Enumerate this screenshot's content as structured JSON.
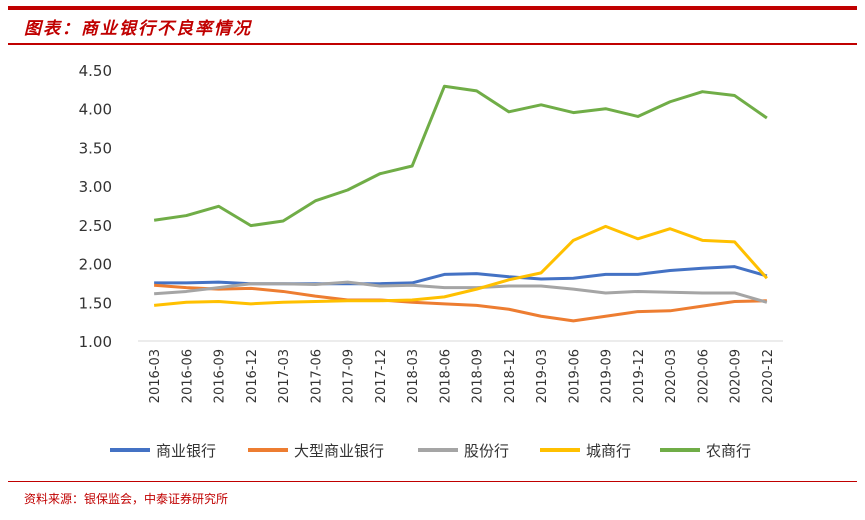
{
  "title": "图表：商业银行不良率情况",
  "source": "资料来源：银保监会，中泰证券研究所",
  "chart_data": {
    "type": "line",
    "title": "商业银行不良率情况",
    "xlabel": "",
    "ylabel": "",
    "ylim": [
      1.0,
      4.5
    ],
    "yticks": [
      "4.50",
      "4.00",
      "3.50",
      "3.00",
      "2.50",
      "2.00",
      "1.50",
      "1.00"
    ],
    "categories": [
      "2016-03",
      "2016-06",
      "2016-09",
      "2016-12",
      "2017-03",
      "2017-06",
      "2017-09",
      "2017-12",
      "2018-03",
      "2018-06",
      "2018-09",
      "2018-12",
      "2019-03",
      "2019-06",
      "2019-09",
      "2019-12",
      "2020-03",
      "2020-06",
      "2020-09",
      "2020-12"
    ],
    "legend_position": "bottom",
    "series": [
      {
        "name": "商业银行",
        "color": "#4472c4",
        "values": [
          1.75,
          1.75,
          1.76,
          1.74,
          1.74,
          1.74,
          1.74,
          1.74,
          1.75,
          1.86,
          1.87,
          1.83,
          1.8,
          1.81,
          1.86,
          1.86,
          1.91,
          1.94,
          1.96,
          1.84
        ]
      },
      {
        "name": "大型商业银行",
        "color": "#ed7d31",
        "values": [
          1.72,
          1.69,
          1.67,
          1.68,
          1.64,
          1.58,
          1.53,
          1.53,
          1.5,
          1.48,
          1.46,
          1.41,
          1.32,
          1.26,
          1.32,
          1.38,
          1.39,
          1.45,
          1.51,
          1.52
        ]
      },
      {
        "name": "股份行",
        "color": "#a5a5a5",
        "values": [
          1.61,
          1.64,
          1.69,
          1.74,
          1.74,
          1.73,
          1.76,
          1.71,
          1.72,
          1.69,
          1.69,
          1.71,
          1.71,
          1.67,
          1.62,
          1.64,
          1.63,
          1.62,
          1.62,
          1.5
        ]
      },
      {
        "name": "城商行",
        "color": "#ffc000",
        "values": [
          1.46,
          1.5,
          1.51,
          1.48,
          1.5,
          1.51,
          1.52,
          1.52,
          1.53,
          1.57,
          1.67,
          1.79,
          1.88,
          2.3,
          2.48,
          2.32,
          2.45,
          2.3,
          2.28,
          1.81
        ]
      },
      {
        "name": "农商行",
        "color": "#70ad47",
        "values": [
          2.56,
          2.62,
          2.74,
          2.49,
          2.55,
          2.81,
          2.95,
          3.16,
          3.26,
          4.29,
          4.23,
          3.96,
          4.05,
          3.95,
          4.0,
          3.9,
          4.09,
          4.22,
          4.17,
          3.88
        ]
      }
    ]
  }
}
